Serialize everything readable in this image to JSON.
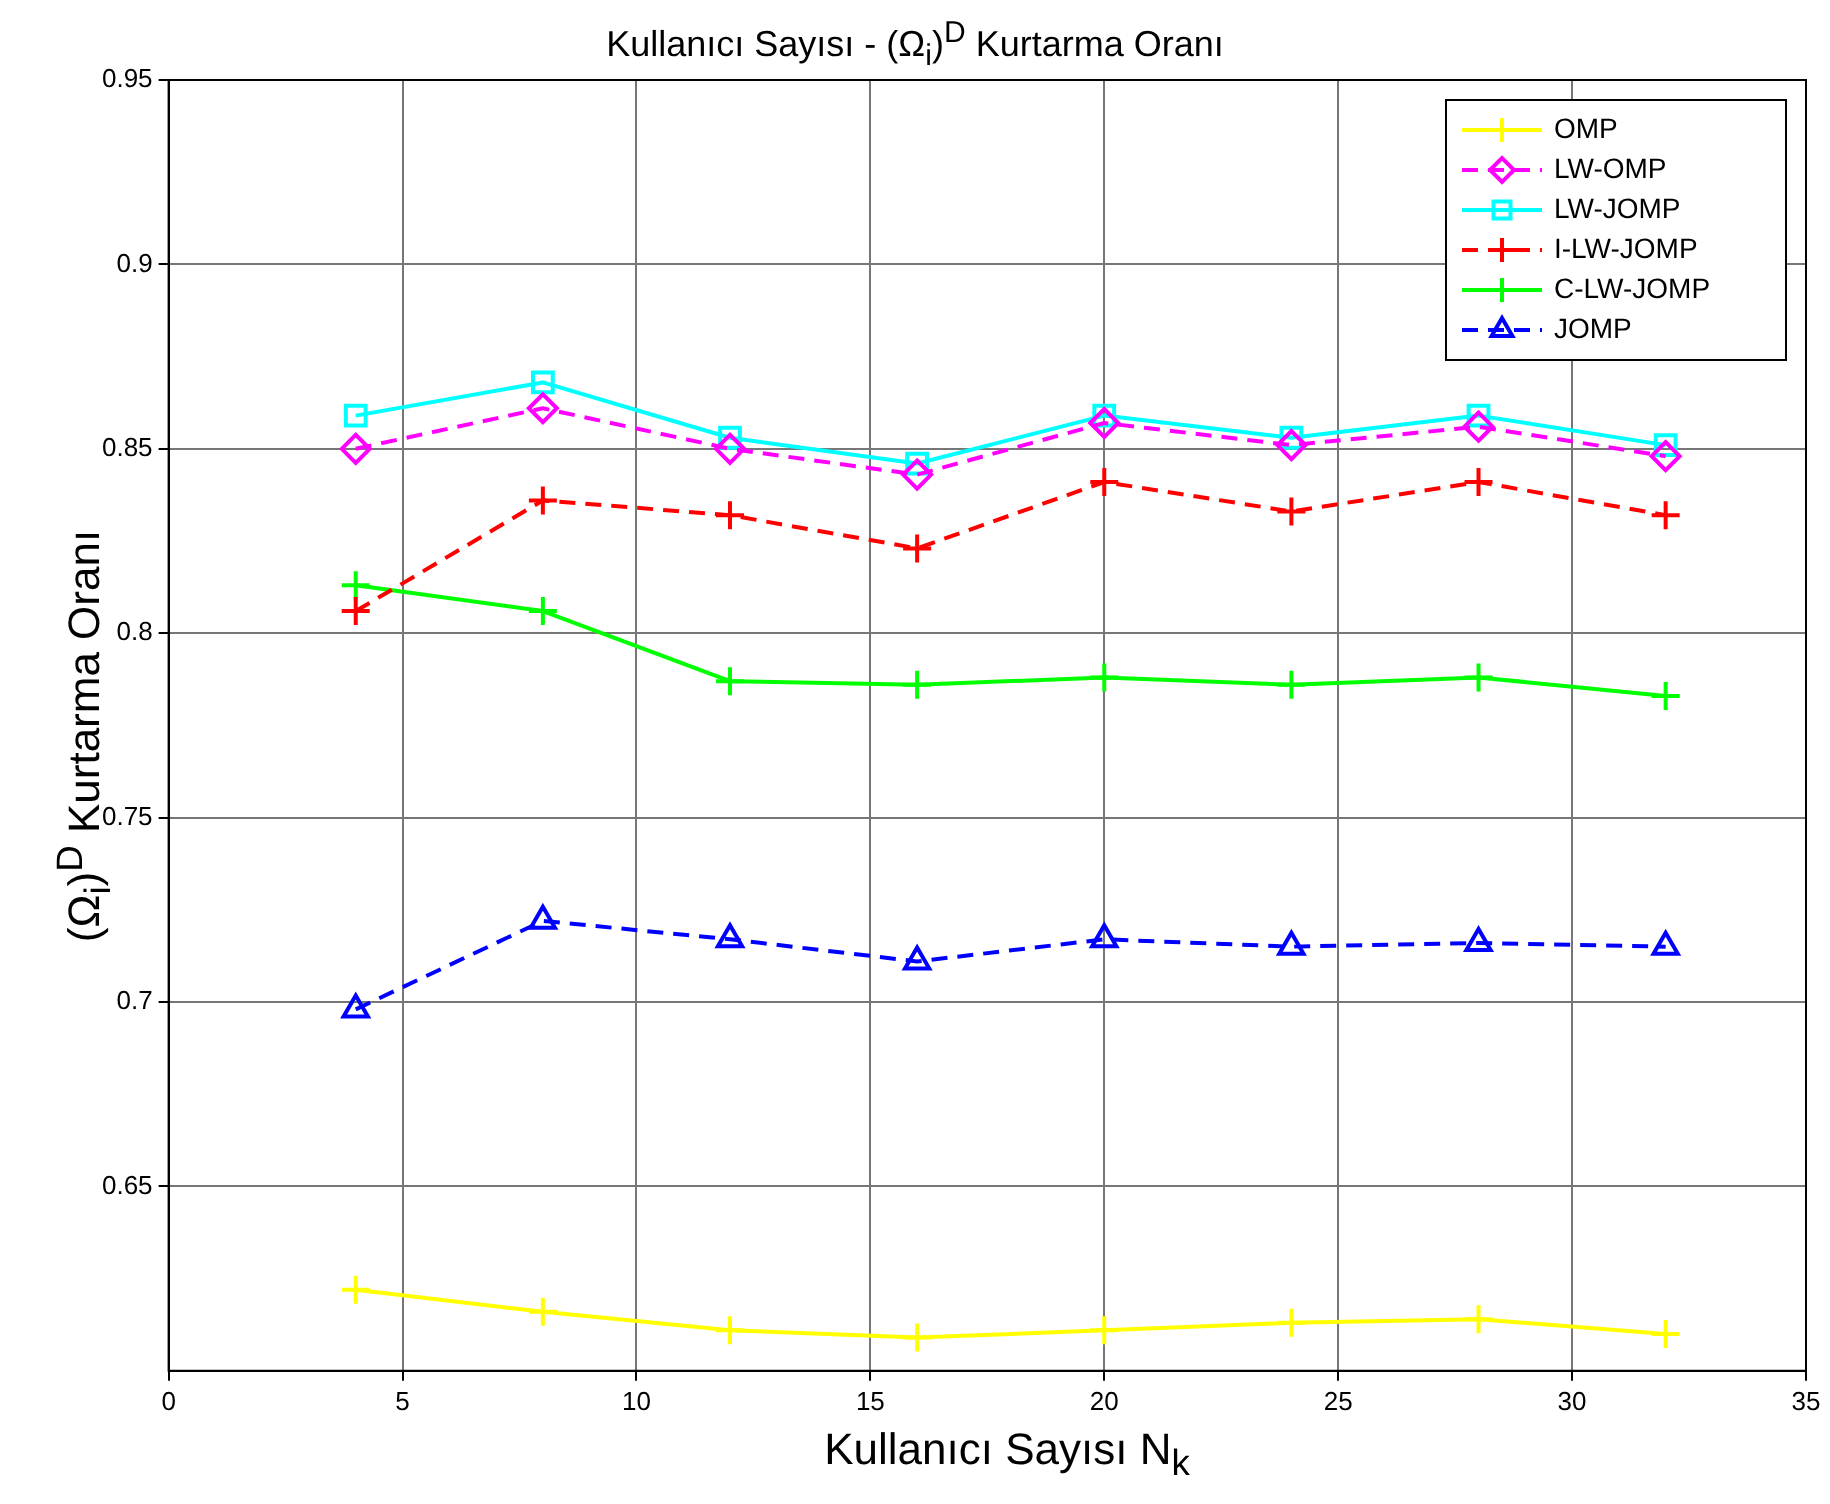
{
  "chart_data": {
    "type": "line",
    "title": "Kullanıcı Sayısı - (Ω$_{i}$)$^{D}$ Kurtarma Oranı",
    "xlabel": "Kullanıcı Sayısı N$_{k}$",
    "ylabel": "(Ω$_{i}$)$^{D}$ Kurtarma Oranı",
    "x": [
      4,
      8,
      12,
      16,
      20,
      24,
      28,
      32
    ],
    "xlim": [
      0,
      35
    ],
    "xticks": [
      0,
      5,
      10,
      15,
      20,
      25,
      30,
      35
    ],
    "ylim": [
      0.6,
      0.95
    ],
    "yticks": [
      0.65,
      0.7,
      0.75,
      0.8,
      0.85,
      0.9,
      0.95
    ],
    "grid": true,
    "legend": "top right",
    "series": [
      {
        "name": "OMP",
        "color": "#ffff00",
        "marker": "cross",
        "line_style": "solid",
        "values": [
          0.622,
          0.616,
          0.611,
          0.609,
          0.611,
          0.613,
          0.614,
          0.61
        ]
      },
      {
        "name": "LW-OMP",
        "color": "#ff00ff",
        "marker": "diamond",
        "line_style": "dashed",
        "values": [
          0.85,
          0.861,
          0.85,
          0.843,
          0.857,
          0.851,
          0.856,
          0.848
        ]
      },
      {
        "name": "LW-JOMP",
        "color": "#00ffff",
        "marker": "square",
        "line_style": "solid",
        "values": [
          0.859,
          0.868,
          0.853,
          0.846,
          0.859,
          0.853,
          0.859,
          0.851
        ]
      },
      {
        "name": "I-LW-JOMP",
        "color": "#ff0000",
        "marker": "cross",
        "line_style": "dashed",
        "values": [
          0.806,
          0.836,
          0.832,
          0.823,
          0.841,
          0.833,
          0.841,
          0.832
        ]
      },
      {
        "name": "C-LW-JOMP",
        "color": "#00ff00",
        "marker": "cross",
        "line_style": "solid",
        "values": [
          0.813,
          0.806,
          0.787,
          0.786,
          0.788,
          0.786,
          0.788,
          0.783
        ]
      },
      {
        "name": "JOMP",
        "color": "#0000ff",
        "marker": "triangle",
        "line_style": "dashed",
        "values": [
          0.698,
          0.722,
          0.717,
          0.711,
          0.717,
          0.715,
          0.716,
          0.715
        ]
      }
    ]
  }
}
